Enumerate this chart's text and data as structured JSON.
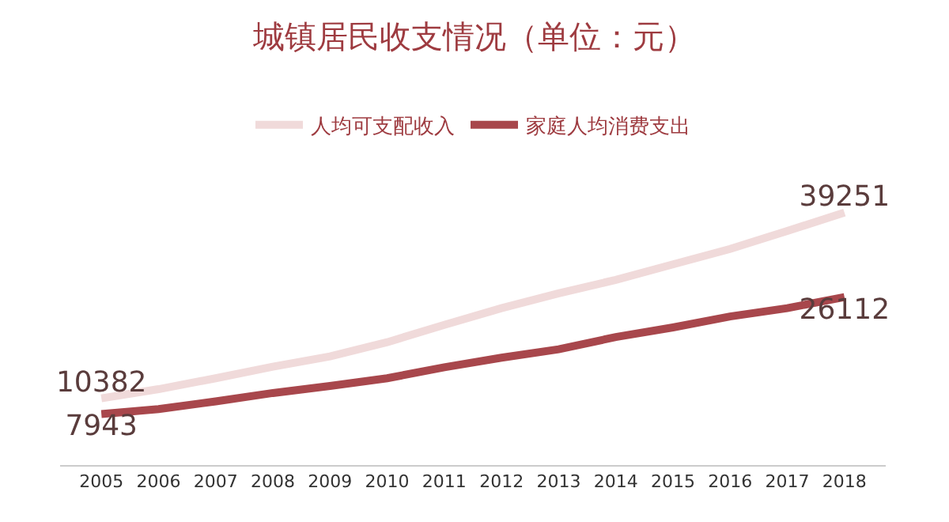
{
  "chart_data": {
    "type": "line",
    "title": "城镇居民收支情况（单位：元）",
    "categories": [
      "2005",
      "2006",
      "2007",
      "2008",
      "2009",
      "2010",
      "2011",
      "2012",
      "2013",
      "2014",
      "2015",
      "2016",
      "2017",
      "2018"
    ],
    "series": [
      {
        "name": "人均可支配收入",
        "color": "#f0dada",
        "values": [
          10382,
          11800,
          13500,
          15300,
          16900,
          19100,
          21800,
          24400,
          26700,
          28800,
          31200,
          33600,
          36400,
          39251
        ],
        "value_labels": [
          "10382",
          null,
          null,
          null,
          null,
          null,
          null,
          null,
          null,
          null,
          null,
          null,
          null,
          "39251"
        ]
      },
      {
        "name": "家庭人均消费支出",
        "color": "#a8474c",
        "values": [
          7943,
          8700,
          9900,
          11200,
          12300,
          13500,
          15200,
          16700,
          18000,
          19900,
          21400,
          23100,
          24400,
          26112
        ],
        "value_labels": [
          "7943",
          null,
          null,
          null,
          null,
          null,
          null,
          null,
          null,
          null,
          null,
          null,
          null,
          "26112"
        ]
      }
    ],
    "tick_labels": "x",
    "legend": "top",
    "marker": "none",
    "line_style": "solid"
  }
}
